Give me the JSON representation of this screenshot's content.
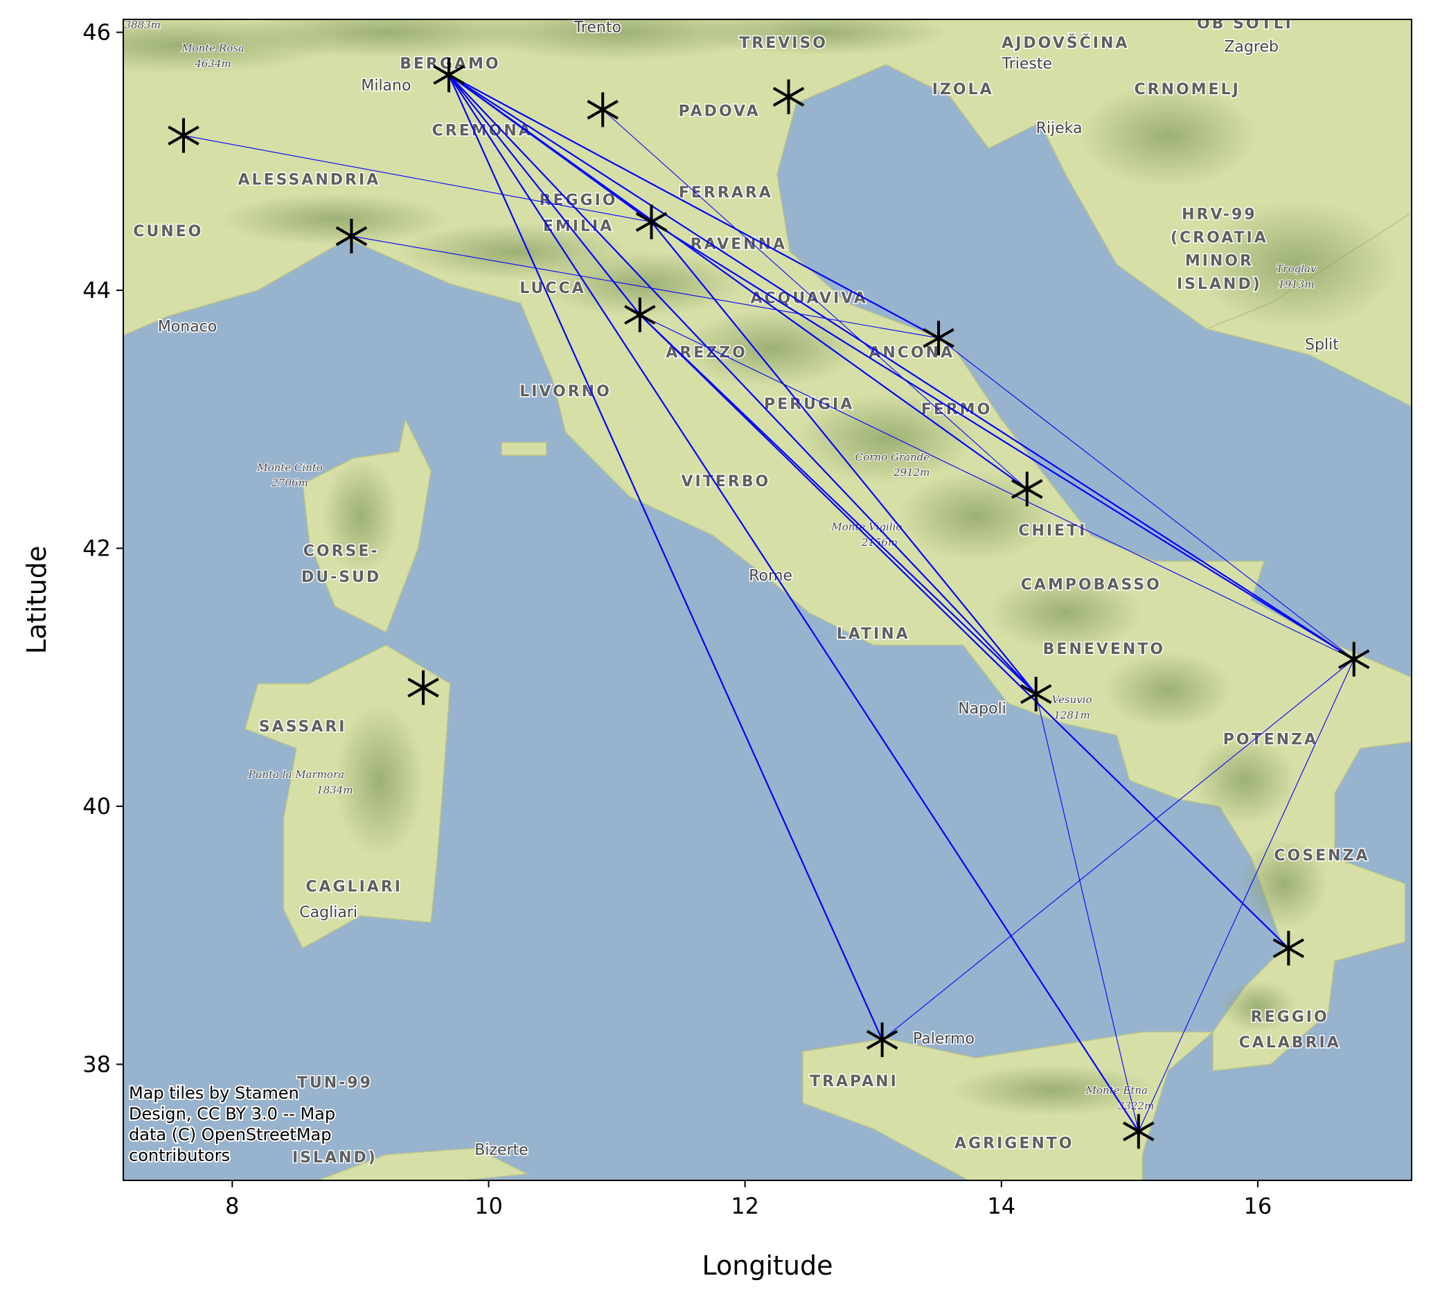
{
  "chart_data": {
    "type": "map",
    "xlabel": "Longitude",
    "ylabel": "Latitude",
    "xlim": [
      7.15,
      17.2
    ],
    "ylim": [
      37.1,
      46.1
    ],
    "xticks": [
      8,
      10,
      12,
      14,
      16
    ],
    "yticks": [
      38,
      40,
      42,
      44,
      46
    ],
    "marker_color": "#000000",
    "line_color": "#0000ff",
    "water_color": "#98b3cd",
    "land_color": "#d6dfa6",
    "attribution": [
      "Map tiles by Stamen",
      "Design, CC BY 3.0 -- Map",
      "data (C) OpenStreetMap",
      "contributors"
    ],
    "points": [
      {
        "id": "p0",
        "lon": 7.62,
        "lat": 45.2
      },
      {
        "id": "p1",
        "lon": 9.69,
        "lat": 45.67
      },
      {
        "id": "p2",
        "lon": 10.89,
        "lat": 45.4
      },
      {
        "id": "p3",
        "lon": 12.34,
        "lat": 45.5
      },
      {
        "id": "p4",
        "lon": 8.93,
        "lat": 44.42
      },
      {
        "id": "p5",
        "lon": 11.27,
        "lat": 44.53
      },
      {
        "id": "p6",
        "lon": 11.18,
        "lat": 43.81
      },
      {
        "id": "p7",
        "lon": 13.51,
        "lat": 43.63
      },
      {
        "id": "p8",
        "lon": 14.2,
        "lat": 42.46
      },
      {
        "id": "p9",
        "lon": 9.49,
        "lat": 40.92
      },
      {
        "id": "p10",
        "lon": 14.27,
        "lat": 40.87
      },
      {
        "id": "p11",
        "lon": 16.75,
        "lat": 41.14
      },
      {
        "id": "p12",
        "lon": 16.24,
        "lat": 38.9
      },
      {
        "id": "p13",
        "lon": 13.07,
        "lat": 38.19
      },
      {
        "id": "p14",
        "lon": 15.07,
        "lat": 37.48
      }
    ],
    "edges": [
      {
        "from": "p0",
        "to": "p5",
        "width": 1
      },
      {
        "from": "p1",
        "to": "p5",
        "width": 2
      },
      {
        "from": "p1",
        "to": "p6",
        "width": 2
      },
      {
        "from": "p1",
        "to": "p7",
        "width": 2
      },
      {
        "from": "p1",
        "to": "p8",
        "width": 2
      },
      {
        "from": "p1",
        "to": "p10",
        "width": 2
      },
      {
        "from": "p1",
        "to": "p11",
        "width": 2
      },
      {
        "from": "p1",
        "to": "p13",
        "width": 2
      },
      {
        "from": "p1",
        "to": "p14",
        "width": 2
      },
      {
        "from": "p2",
        "to": "p8",
        "width": 1
      },
      {
        "from": "p4",
        "to": "p7",
        "width": 1
      },
      {
        "from": "p5",
        "to": "p10",
        "width": 2
      },
      {
        "from": "p5",
        "to": "p11",
        "width": 2
      },
      {
        "from": "p6",
        "to": "p10",
        "width": 2
      },
      {
        "from": "p6",
        "to": "p11",
        "width": 1
      },
      {
        "from": "p6",
        "to": "p12",
        "width": 2
      },
      {
        "from": "p7",
        "to": "p11",
        "width": 1
      },
      {
        "from": "p10",
        "to": "p14",
        "width": 1
      },
      {
        "from": "p11",
        "to": "p13",
        "width": 1
      },
      {
        "from": "p11",
        "to": "p14",
        "width": 1
      }
    ],
    "place_labels": [
      {
        "name": "TREVISO",
        "lon": 12.3,
        "lat": 45.88,
        "style": "caps"
      },
      {
        "name": "AJDOVŠČINA",
        "lon": 14.5,
        "lat": 45.88,
        "style": "caps"
      },
      {
        "name": "OB SOTLI",
        "lon": 15.9,
        "lat": 46.03,
        "style": "caps"
      },
      {
        "name": "BERGAMO",
        "lon": 9.7,
        "lat": 45.72,
        "style": "caps"
      },
      {
        "name": "Trento",
        "lon": 10.85,
        "lat": 46.0,
        "style": "city"
      },
      {
        "name": "Zagreb",
        "lon": 15.95,
        "lat": 45.85,
        "style": "city"
      },
      {
        "name": "Milano",
        "lon": 9.2,
        "lat": 45.55,
        "style": "city"
      },
      {
        "name": "Trieste",
        "lon": 14.2,
        "lat": 45.72,
        "style": "city"
      },
      {
        "name": "PADOVA",
        "lon": 11.8,
        "lat": 45.35,
        "style": "caps"
      },
      {
        "name": "IZOLA",
        "lon": 13.7,
        "lat": 45.52,
        "style": "caps"
      },
      {
        "name": "CRNOMELJ",
        "lon": 15.45,
        "lat": 45.52,
        "style": "caps"
      },
      {
        "name": "CREMONA",
        "lon": 9.95,
        "lat": 45.2,
        "style": "caps"
      },
      {
        "name": "Rijeka",
        "lon": 14.45,
        "lat": 45.22,
        "style": "city"
      },
      {
        "name": "ALESSANDRIA",
        "lon": 8.6,
        "lat": 44.82,
        "style": "caps"
      },
      {
        "name": "FERRARA",
        "lon": 11.85,
        "lat": 44.72,
        "style": "caps"
      },
      {
        "name": "REGGIO",
        "lon": 10.7,
        "lat": 44.66,
        "style": "caps"
      },
      {
        "name": "EMILIA",
        "lon": 10.7,
        "lat": 44.46,
        "style": "caps"
      },
      {
        "name": "CUNEO",
        "lon": 7.5,
        "lat": 44.42,
        "style": "caps"
      },
      {
        "name": "RAVENNA",
        "lon": 11.95,
        "lat": 44.32,
        "style": "caps"
      },
      {
        "name": "HRV-99",
        "lon": 15.7,
        "lat": 44.55,
        "style": "caps"
      },
      {
        "name": "(CROATIA",
        "lon": 15.7,
        "lat": 44.37,
        "style": "caps"
      },
      {
        "name": "MINOR",
        "lon": 15.7,
        "lat": 44.19,
        "style": "caps"
      },
      {
        "name": "ISLAND)",
        "lon": 15.7,
        "lat": 44.01,
        "style": "caps"
      },
      {
        "name": "LUCCA",
        "lon": 10.5,
        "lat": 43.98,
        "style": "caps"
      },
      {
        "name": "ACQUAVIVA",
        "lon": 12.5,
        "lat": 43.9,
        "style": "caps"
      },
      {
        "name": "ANCONA",
        "lon": 13.3,
        "lat": 43.48,
        "style": "caps"
      },
      {
        "name": "Monaco",
        "lon": 7.65,
        "lat": 43.68,
        "style": "city"
      },
      {
        "name": "Split",
        "lon": 16.5,
        "lat": 43.54,
        "style": "city"
      },
      {
        "name": "AREZZO",
        "lon": 11.7,
        "lat": 43.48,
        "style": "caps"
      },
      {
        "name": "LIVORNO",
        "lon": 10.6,
        "lat": 43.18,
        "style": "caps"
      },
      {
        "name": "PERUGIA",
        "lon": 12.5,
        "lat": 43.08,
        "style": "caps"
      },
      {
        "name": "FERMO",
        "lon": 13.65,
        "lat": 43.04,
        "style": "caps"
      },
      {
        "name": "VITERBO",
        "lon": 11.85,
        "lat": 42.48,
        "style": "caps"
      },
      {
        "name": "CHIETI",
        "lon": 14.4,
        "lat": 42.1,
        "style": "caps"
      },
      {
        "name": "CORSE-",
        "lon": 8.85,
        "lat": 41.94,
        "style": "caps"
      },
      {
        "name": "DU-SUD",
        "lon": 8.85,
        "lat": 41.74,
        "style": "caps"
      },
      {
        "name": "Rome",
        "lon": 12.2,
        "lat": 41.75,
        "style": "city"
      },
      {
        "name": "CAMPOBASSO",
        "lon": 14.7,
        "lat": 41.68,
        "style": "caps"
      },
      {
        "name": "LATINA",
        "lon": 13.0,
        "lat": 41.3,
        "style": "caps"
      },
      {
        "name": "BENEVENTO",
        "lon": 14.8,
        "lat": 41.18,
        "style": "caps"
      },
      {
        "name": "Napoli",
        "lon": 13.85,
        "lat": 40.72,
        "style": "city"
      },
      {
        "name": "SASSARI",
        "lon": 8.55,
        "lat": 40.58,
        "style": "caps"
      },
      {
        "name": "POTENZA",
        "lon": 16.1,
        "lat": 40.48,
        "style": "caps"
      },
      {
        "name": "COSENZA",
        "lon": 16.5,
        "lat": 39.58,
        "style": "caps"
      },
      {
        "name": "CAGLIARI",
        "lon": 8.95,
        "lat": 39.34,
        "style": "caps"
      },
      {
        "name": "Cagliari",
        "lon": 8.75,
        "lat": 39.14,
        "style": "city"
      },
      {
        "name": "REGGIO",
        "lon": 16.25,
        "lat": 38.33,
        "style": "caps"
      },
      {
        "name": "CALABRIA",
        "lon": 16.25,
        "lat": 38.13,
        "style": "caps"
      },
      {
        "name": "Palermo",
        "lon": 13.55,
        "lat": 38.16,
        "style": "city"
      },
      {
        "name": "TRAPANI",
        "lon": 12.85,
        "lat": 37.83,
        "style": "caps"
      },
      {
        "name": "TUN-99",
        "lon": 8.8,
        "lat": 37.82,
        "style": "caps"
      },
      {
        "name": "AGRIGENTO",
        "lon": 14.1,
        "lat": 37.35,
        "style": "caps"
      },
      {
        "name": "ISLAND)",
        "lon": 8.8,
        "lat": 37.24,
        "style": "caps"
      },
      {
        "name": "Bizerte",
        "lon": 10.1,
        "lat": 37.3,
        "style": "city"
      }
    ],
    "peak_labels": [
      {
        "name": "3883m",
        "lon": 7.3,
        "lat": 46.03
      },
      {
        "name": "Monte Rosa",
        "lon": 7.85,
        "lat": 45.85
      },
      {
        "name": "4634m",
        "lon": 7.85,
        "lat": 45.73
      },
      {
        "name": "Monte Cinto",
        "lon": 8.45,
        "lat": 42.6
      },
      {
        "name": "2706m",
        "lon": 8.45,
        "lat": 42.48
      },
      {
        "name": "Corno Grande",
        "lon": 13.15,
        "lat": 42.68
      },
      {
        "name": "2912m",
        "lon": 13.3,
        "lat": 42.56
      },
      {
        "name": "Troglav",
        "lon": 16.3,
        "lat": 44.14
      },
      {
        "name": "1913m",
        "lon": 16.3,
        "lat": 44.02
      },
      {
        "name": "Monte Vigilio",
        "lon": 12.95,
        "lat": 42.14
      },
      {
        "name": "2156m",
        "lon": 13.05,
        "lat": 42.02
      },
      {
        "name": "Vesuvio",
        "lon": 14.55,
        "lat": 40.8
      },
      {
        "name": "1281m",
        "lon": 14.55,
        "lat": 40.68
      },
      {
        "name": "Punta la Marmora",
        "lon": 8.5,
        "lat": 40.22
      },
      {
        "name": "1834m",
        "lon": 8.8,
        "lat": 40.1
      },
      {
        "name": "Monte Etna",
        "lon": 14.9,
        "lat": 37.77
      },
      {
        "name": "3322m",
        "lon": 15.05,
        "lat": 37.65
      }
    ]
  }
}
